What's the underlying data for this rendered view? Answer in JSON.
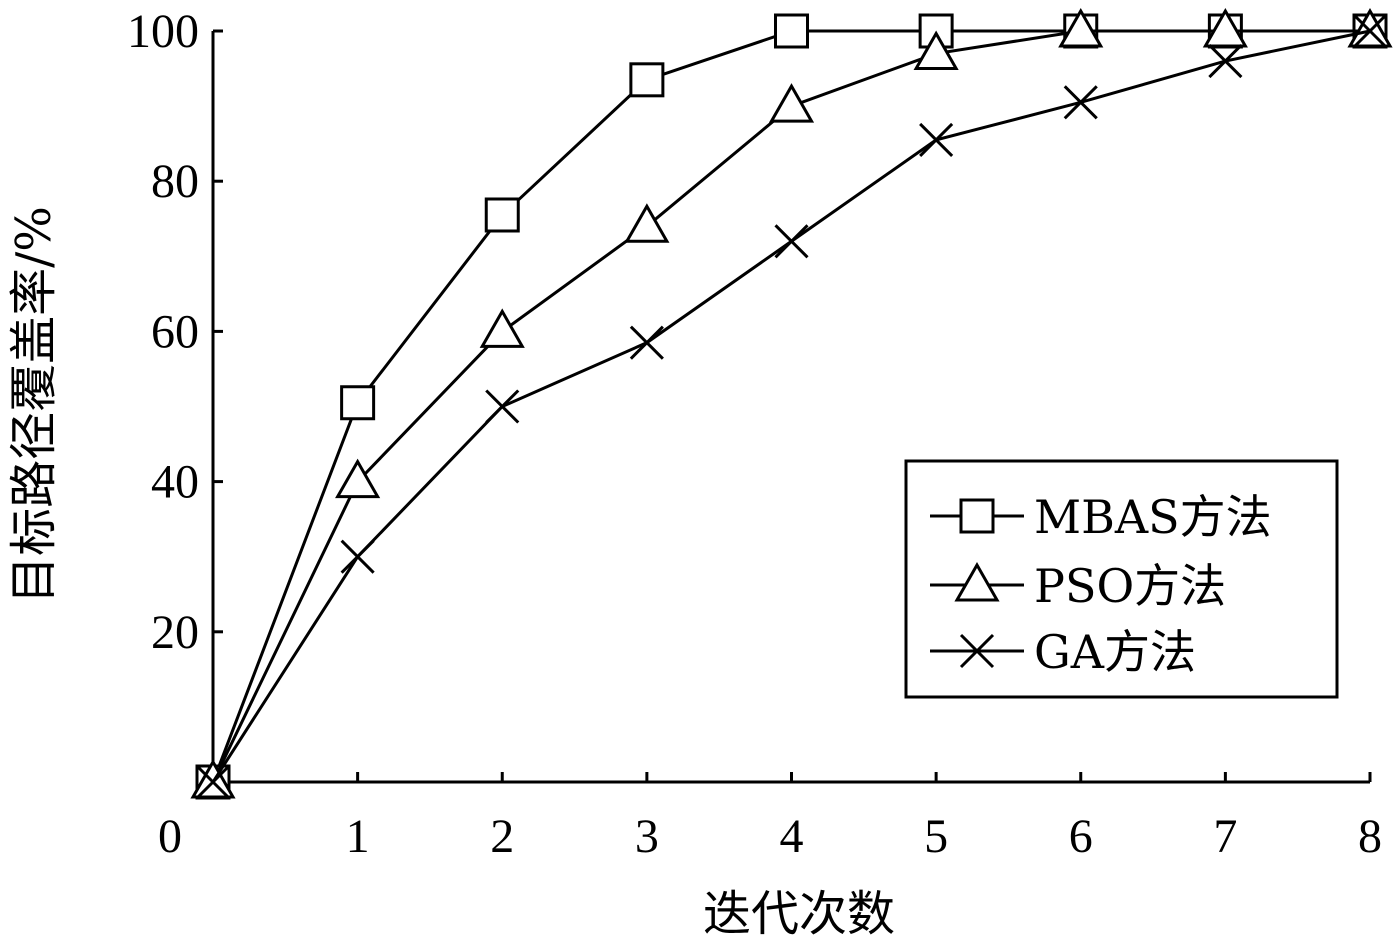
{
  "chart_data": {
    "type": "line",
    "x": [
      0,
      1,
      2,
      3,
      4,
      5,
      6,
      7,
      8
    ],
    "xlabel": "迭代次数",
    "ylabel": "目标路径覆盖率/%",
    "xlim": [
      0,
      8
    ],
    "ylim": [
      0,
      100
    ],
    "x_ticks": [
      "0",
      "1",
      "2",
      "3",
      "4",
      "5",
      "6",
      "7",
      "8"
    ],
    "y_ticks": [
      "20",
      "40",
      "60",
      "80",
      "100"
    ],
    "y_tick_values": [
      20,
      40,
      60,
      80,
      100
    ],
    "grid": false,
    "legend_position": "lower-right",
    "series": [
      {
        "name": "MBAS方法",
        "marker": "square",
        "values": [
          0,
          50.5,
          75.5,
          93.5,
          100,
          100,
          100,
          100,
          100
        ]
      },
      {
        "name": "PSO方法",
        "marker": "triangle",
        "values": [
          0,
          40,
          60,
          74,
          90,
          97,
          100,
          100,
          100
        ]
      },
      {
        "name": "GA方法",
        "marker": "cross",
        "values": [
          0,
          30,
          50,
          58.5,
          72,
          85.5,
          90.5,
          96,
          100
        ]
      }
    ],
    "colors": {
      "line": "#000000",
      "background": "#ffffff"
    }
  }
}
